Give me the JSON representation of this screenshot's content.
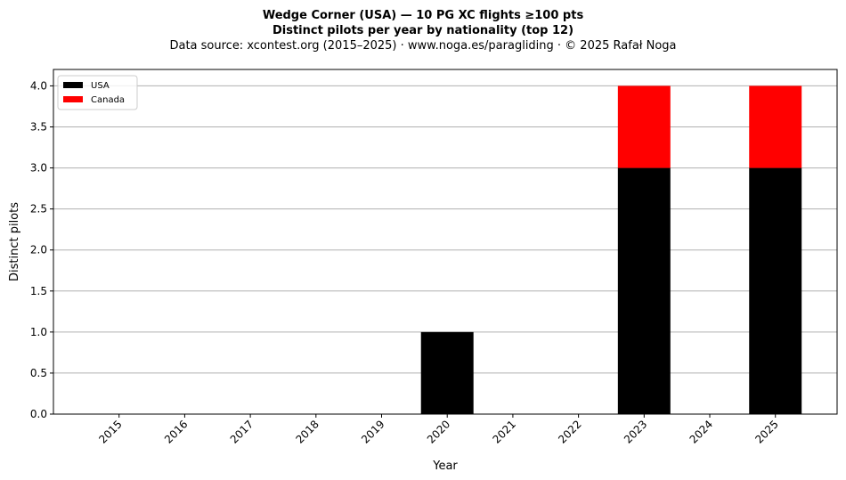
{
  "title_line1": "Wedge Corner (USA)  —  10 PG XC flights ≥100 pts",
  "title_line2": "Distinct pilots per year by nationality (top 12)",
  "title_line3": "Data source: xcontest.org (2015–2025)  ·  www.noga.es/paragliding  ·  © 2025 Rafał Noga",
  "chart_data": {
    "type": "bar",
    "stacked": true,
    "categories": [
      "2015",
      "2016",
      "2017",
      "2018",
      "2019",
      "2020",
      "2021",
      "2022",
      "2023",
      "2024",
      "2025"
    ],
    "series": [
      {
        "name": "USA",
        "color": "#000000",
        "values": [
          0,
          0,
          0,
          0,
          0,
          1,
          0,
          0,
          3,
          0,
          3
        ]
      },
      {
        "name": "Canada",
        "color": "#ff0000",
        "values": [
          0,
          0,
          0,
          0,
          0,
          0,
          0,
          0,
          1,
          0,
          1
        ]
      }
    ],
    "xlabel": "Year",
    "ylabel": "Distinct pilots",
    "ylim": [
      0,
      4.2
    ],
    "yticks": [
      "0.0",
      "0.5",
      "1.0",
      "1.5",
      "2.0",
      "2.5",
      "3.0",
      "3.5",
      "4.0"
    ],
    "grid": "y",
    "legend": "top-left"
  }
}
